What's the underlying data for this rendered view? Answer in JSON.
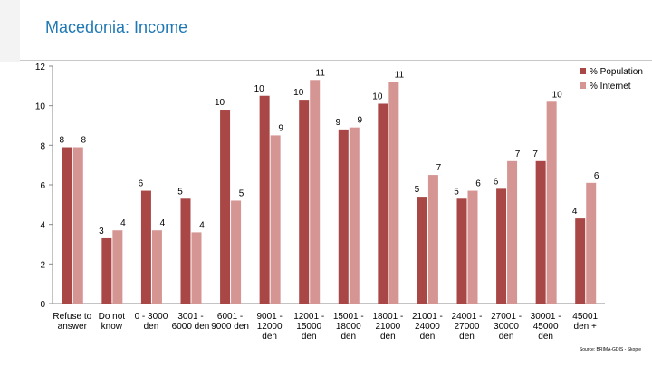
{
  "header": {
    "title": "Macedonia: Income"
  },
  "source_note": "Source: BRIMA-GDIS - Skopje",
  "chart_data": {
    "type": "bar",
    "title": "Macedonia: Income",
    "categories": [
      [
        "Refuse to",
        "answer"
      ],
      [
        "Do not",
        "know"
      ],
      [
        "0 - 3000",
        "den"
      ],
      [
        "3001 -",
        "6000 den"
      ],
      [
        "6001 -",
        "9000 den"
      ],
      [
        "9001 -",
        "12000",
        "den"
      ],
      [
        "12001 -",
        "15000",
        "den"
      ],
      [
        "15001 -",
        "18000",
        "den"
      ],
      [
        "18001 -",
        "21000",
        "den"
      ],
      [
        "21001 -",
        "24000",
        "den"
      ],
      [
        "24001 -",
        "27000",
        "den"
      ],
      [
        "27001 -",
        "30000",
        "den"
      ],
      [
        "30001 -",
        "45000",
        "den"
      ],
      [
        "45001",
        "den +"
      ]
    ],
    "series": [
      {
        "name": "% Population",
        "color": "#a84745",
        "values": [
          7.9,
          3.3,
          5.7,
          5.3,
          9.8,
          10.5,
          10.3,
          8.8,
          10.1,
          5.4,
          5.3,
          5.8,
          7.2,
          4.3
        ],
        "labels": [
          "8",
          "3",
          "6",
          "5",
          "10",
          "10",
          "10",
          "9",
          "10",
          "5",
          "5",
          "6",
          "7",
          "4"
        ]
      },
      {
        "name": "% Internet",
        "color": "#d59593",
        "values": [
          7.9,
          3.7,
          3.7,
          3.6,
          5.2,
          8.5,
          11.3,
          8.9,
          11.2,
          6.5,
          5.7,
          7.2,
          10.2,
          6.1
        ],
        "labels": [
          "8",
          "4",
          "4",
          "4",
          "5",
          "9",
          "11",
          "9",
          "11",
          "7",
          "6",
          "7",
          "10",
          "6"
        ]
      }
    ],
    "ylim": [
      0,
      12
    ],
    "yticks": [
      0,
      2,
      4,
      6,
      8,
      10,
      12
    ],
    "grid": false,
    "legend_position": "top-right"
  }
}
